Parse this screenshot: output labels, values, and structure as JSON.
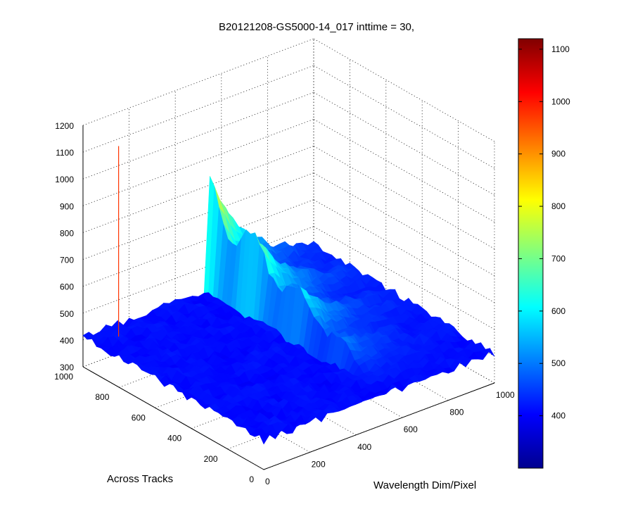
{
  "chart_data": {
    "type": "surface",
    "title": "B20121208-GS5000-14_017 inttime = 30,",
    "xlabel": "Wavelength Dim/Pixel",
    "ylabel": "Across Tracks",
    "zlabel": "",
    "xlim": [
      0,
      1000
    ],
    "ylim": [
      0,
      1000
    ],
    "zlim": [
      300,
      1200
    ],
    "xticks": [
      "0",
      "200",
      "400",
      "600",
      "800",
      "1000"
    ],
    "yticks": [
      "0",
      "200",
      "400",
      "600",
      "800",
      "1000"
    ],
    "zticks": [
      "300",
      "400",
      "500",
      "600",
      "700",
      "800",
      "900",
      "1000",
      "1100",
      "1200"
    ],
    "grid": true,
    "colormap": "jet",
    "colorbar": {
      "range": [
        300,
        1120
      ],
      "ticks": [
        "400",
        "500",
        "600",
        "700",
        "800",
        "900",
        "1000",
        "1100"
      ],
      "location": "right"
    },
    "surface": {
      "baseline": 410,
      "noise_amplitude": 15,
      "peak": {
        "wavelength_range": [
          540,
          1000
        ],
        "wavelength_center": 560,
        "across_track_center": 1000,
        "max_value": 800
      },
      "spike": {
        "wavelength": 0,
        "across_track": 1000,
        "value": 1120
      }
    }
  }
}
